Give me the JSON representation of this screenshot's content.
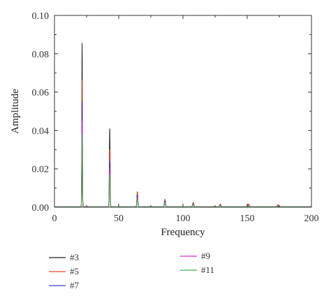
{
  "chart_data": {
    "type": "line",
    "title": "",
    "xlabel": "Frequency",
    "ylabel": "Amplitude",
    "xlim": [
      0,
      200
    ],
    "ylim": [
      0,
      0.1
    ],
    "xticks": [
      0,
      50,
      100,
      150,
      200
    ],
    "yticks": [
      0.0,
      0.02,
      0.04,
      0.06,
      0.08,
      0.1
    ],
    "ytick_labels": [
      "0.00",
      "0.02",
      "0.04",
      "0.06",
      "0.08",
      "0.10"
    ],
    "grid": false,
    "legend_position": "bottom",
    "series": [
      {
        "name": "#3",
        "color": "#222222",
        "peaks": [
          [
            21.5,
            0.0855
          ],
          [
            43,
            0.041
          ],
          [
            64.5,
            0.008
          ],
          [
            86,
            0.004
          ],
          [
            108,
            0.0022
          ],
          [
            129,
            0.0012
          ],
          [
            151,
            0.0008
          ],
          [
            174,
            0.0005
          ]
        ]
      },
      {
        "name": "#5",
        "color": "#e8432b",
        "peaks": [
          [
            21.5,
            0.066
          ],
          [
            43,
            0.03
          ],
          [
            64.5,
            0.0075
          ],
          [
            86,
            0.0035
          ],
          [
            108,
            0.002
          ],
          [
            129,
            0.0014
          ],
          [
            151,
            0.0016
          ],
          [
            174,
            0.0012
          ]
        ]
      },
      {
        "name": "#7",
        "color": "#3b3bcc",
        "peaks": [
          [
            21.5,
            0.055
          ],
          [
            43,
            0.024
          ],
          [
            64.5,
            0.006
          ],
          [
            86,
            0.003
          ],
          [
            108,
            0.0015
          ],
          [
            129,
            0.001
          ],
          [
            151,
            0.0006
          ],
          [
            174,
            0.0004
          ]
        ]
      },
      {
        "name": "#9",
        "color": "#cc33cc",
        "peaks": [
          [
            21.5,
            0.045
          ],
          [
            43,
            0.02
          ],
          [
            64.5,
            0.005
          ],
          [
            86,
            0.0025
          ],
          [
            108,
            0.0013
          ],
          [
            129,
            0.0008
          ],
          [
            151,
            0.0005
          ],
          [
            174,
            0.0003
          ]
        ]
      },
      {
        "name": "#11",
        "color": "#4caf50",
        "peaks": [
          [
            21.5,
            0.038
          ],
          [
            43,
            0.017
          ],
          [
            64.5,
            0.0045
          ],
          [
            86,
            0.0022
          ],
          [
            108,
            0.0012
          ],
          [
            129,
            0.0007
          ],
          [
            151,
            0.0005
          ],
          [
            174,
            0.0003
          ]
        ]
      }
    ]
  }
}
